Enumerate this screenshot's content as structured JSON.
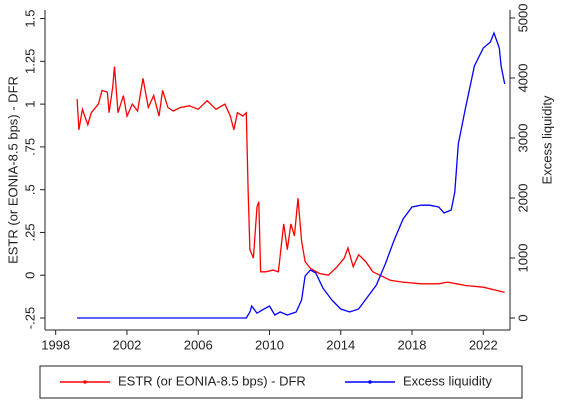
{
  "chart_data": {
    "type": "line",
    "y_label": "ESTR (or EONIA-8.5 bps) - DFR",
    "y2_label": "Excess liquidity",
    "xlim": [
      1997.4,
      2023.5
    ],
    "xticks": [
      1998,
      2002,
      2006,
      2010,
      2014,
      2018,
      2022
    ],
    "ylim": [
      -0.32,
      1.55
    ],
    "yticks": [
      {
        "value": -0.25,
        "label": "-.25"
      },
      0,
      {
        "value": 0.25,
        "label": ".25"
      },
      {
        "value": 0.5,
        "label": ".5"
      },
      {
        "value": 0.75,
        "label": ".75"
      },
      1,
      1.25,
      1.5
    ],
    "y2lim": [
      -200,
      5133
    ],
    "y2ticks": [
      0,
      1000,
      2000,
      3000,
      4000,
      5000
    ],
    "legend": "bottom",
    "series": [
      {
        "name": "ESTR (or EONIA-8.5 bps) - DFR",
        "color": "#ff0000",
        "x": [
          1999.2,
          1999.3,
          1999.5,
          1999.8,
          2000.0,
          2000.4,
          2000.6,
          2000.9,
          2001.0,
          2001.2,
          2001.3,
          2001.5,
          2001.8,
          2002.0,
          2002.3,
          2002.6,
          2002.9,
          2003.2,
          2003.5,
          2003.8,
          2004.0,
          2004.3,
          2004.6,
          2005.0,
          2005.5,
          2006.0,
          2006.5,
          2007.0,
          2007.5,
          2007.8,
          2008.0,
          2008.2,
          2008.5,
          2008.7,
          2008.8,
          2008.9,
          2009.1,
          2009.3,
          2009.4,
          2009.5,
          2009.8,
          2010.2,
          2010.5,
          2010.8,
          2011.0,
          2011.2,
          2011.4,
          2011.6,
          2011.8,
          2012.0,
          2012.3,
          2012.8,
          2013.3,
          2013.8,
          2014.2,
          2014.4,
          2014.7,
          2015.0,
          2015.4,
          2015.8,
          2016.2,
          2016.8,
          2017.5,
          2018.5,
          2019.5,
          2020.0,
          2020.5,
          2021.0,
          2022.0,
          2022.8,
          2023.2
        ],
        "values": [
          1.03,
          0.85,
          0.97,
          0.88,
          0.95,
          1.0,
          1.08,
          1.07,
          0.95,
          1.1,
          1.22,
          0.95,
          1.05,
          0.93,
          1.0,
          0.96,
          1.15,
          0.98,
          1.05,
          0.93,
          1.08,
          0.98,
          0.96,
          0.98,
          0.99,
          0.97,
          1.02,
          0.97,
          1.0,
          0.93,
          0.85,
          0.95,
          0.93,
          0.95,
          0.5,
          0.15,
          0.1,
          0.4,
          0.43,
          0.02,
          0.02,
          0.03,
          0.02,
          0.3,
          0.15,
          0.3,
          0.23,
          0.45,
          0.2,
          0.08,
          0.04,
          0.01,
          0.0,
          0.05,
          0.1,
          0.16,
          0.05,
          0.12,
          0.08,
          0.02,
          0.0,
          -0.03,
          -0.04,
          -0.05,
          -0.05,
          -0.04,
          -0.05,
          -0.06,
          -0.07,
          -0.09,
          -0.1
        ]
      },
      {
        "name": "Excess liquidity",
        "color": "#0000ff",
        "axis": "y2",
        "x": [
          1999.2,
          2008.7,
          2008.9,
          2009.0,
          2009.3,
          2009.7,
          2010.0,
          2010.3,
          2010.6,
          2011.0,
          2011.5,
          2011.8,
          2012.0,
          2012.3,
          2012.6,
          2013.0,
          2013.5,
          2014.0,
          2014.5,
          2015.0,
          2015.5,
          2016.0,
          2016.5,
          2017.0,
          2017.5,
          2018.0,
          2018.5,
          2019.0,
          2019.5,
          2019.8,
          2020.2,
          2020.4,
          2020.6,
          2021.0,
          2021.5,
          2022.0,
          2022.4,
          2022.6,
          2022.9,
          2023.0,
          2023.2
        ],
        "values": [
          0,
          0,
          100,
          200,
          80,
          150,
          200,
          50,
          100,
          50,
          100,
          300,
          700,
          800,
          750,
          500,
          300,
          150,
          100,
          150,
          350,
          550,
          900,
          1300,
          1650,
          1850,
          1880,
          1880,
          1850,
          1750,
          1800,
          2100,
          2900,
          3500,
          4200,
          4500,
          4600,
          4750,
          4500,
          4200,
          3900
        ]
      }
    ]
  }
}
